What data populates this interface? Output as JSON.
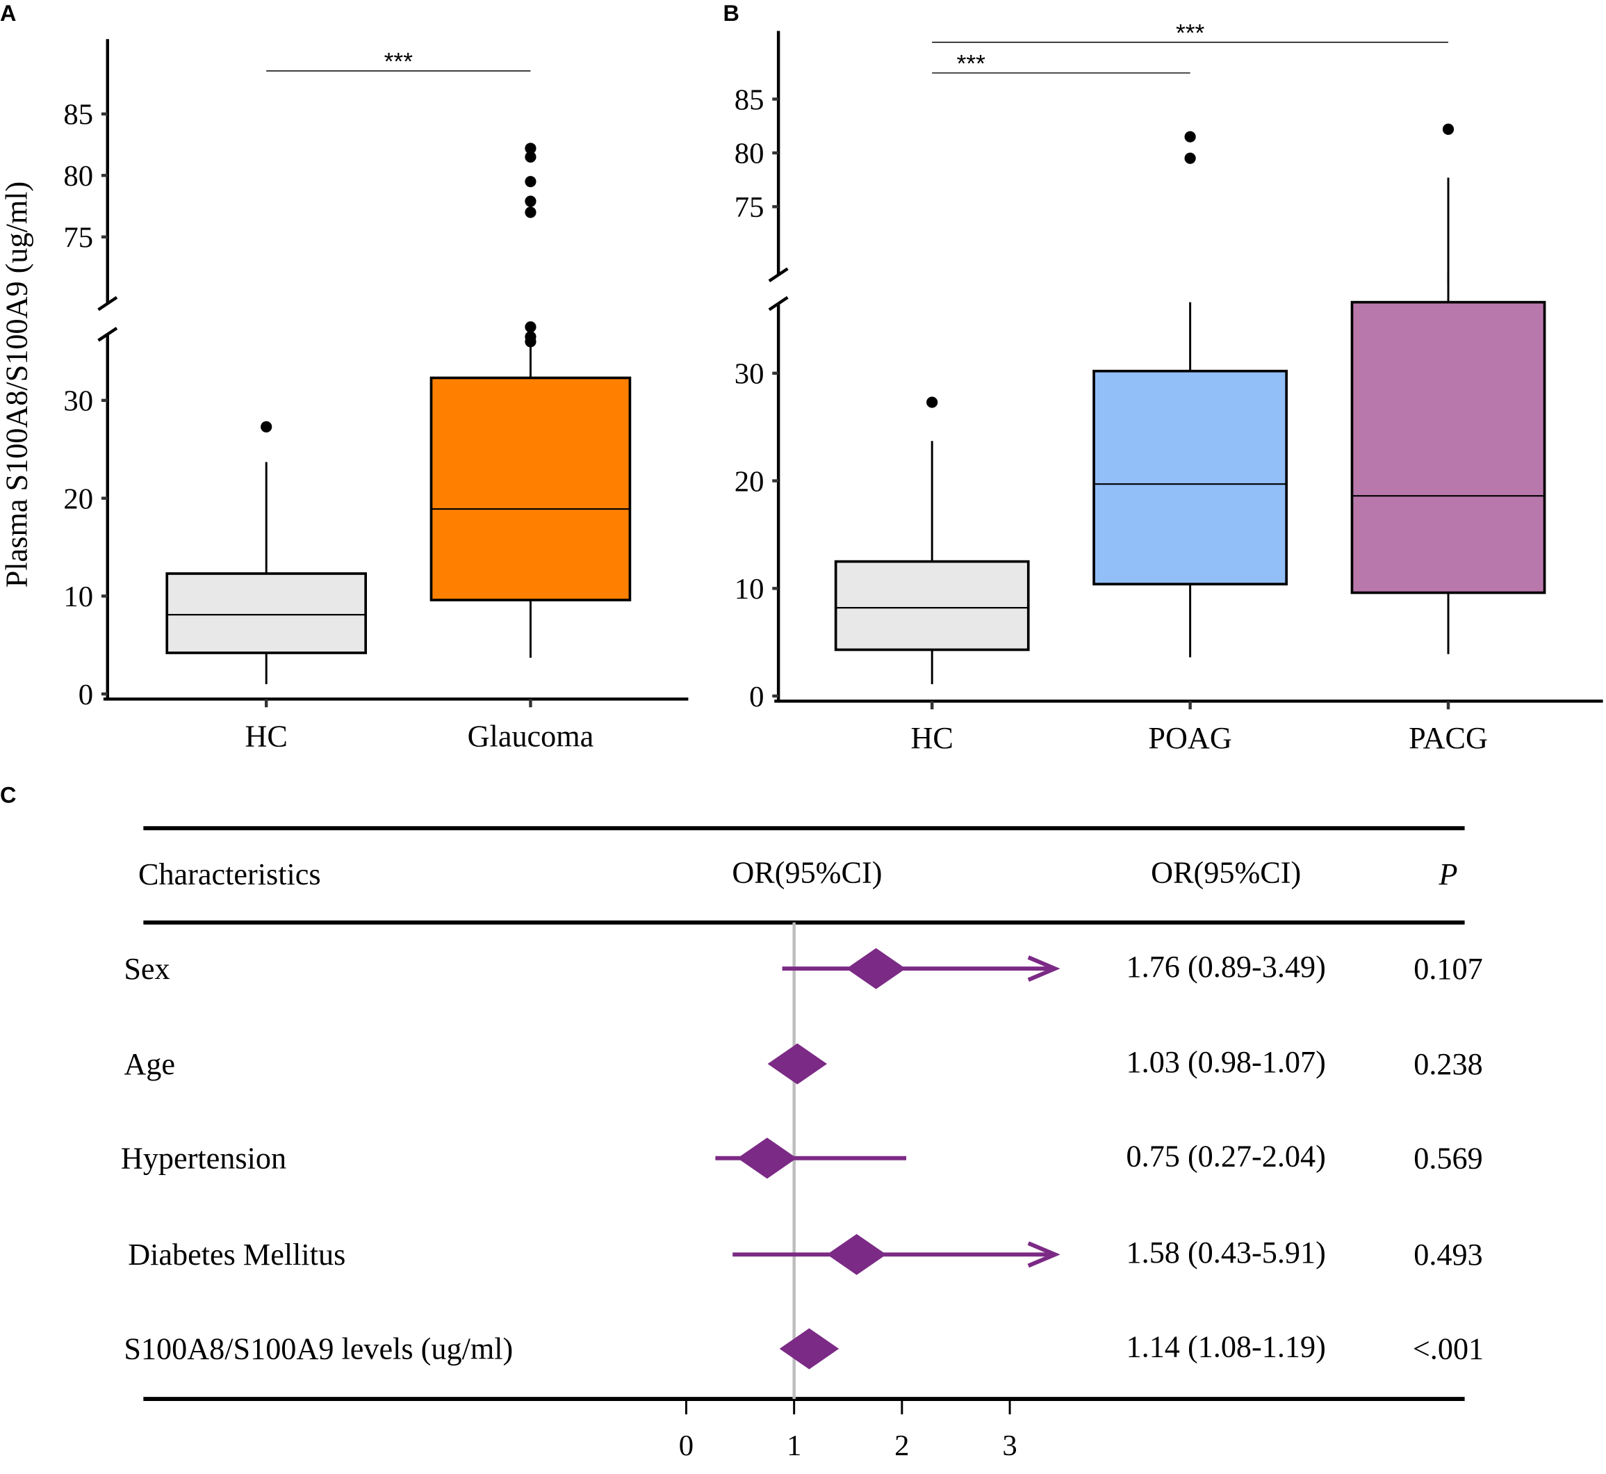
{
  "chart_data": [
    {
      "panel": "A",
      "type": "box",
      "ylabel": "Plasma S100A8/S100A9 (ug/ml)",
      "y_axis_break": true,
      "yticks_lower": [
        0,
        10,
        20,
        30
      ],
      "yticks_upper": [
        75,
        80,
        85
      ],
      "categories": [
        "HC",
        "Glaucoma"
      ],
      "colors": [
        "#e8e8e8",
        "#ff8000"
      ],
      "boxes": [
        {
          "name": "HC",
          "whisker_low": 1.0,
          "q1": 4.2,
          "median": 8.1,
          "q3": 12.3,
          "whisker_high": 23.7,
          "outliers": [
            27.3
          ]
        },
        {
          "name": "Glaucoma",
          "whisker_low": 3.7,
          "q1": 9.6,
          "median": 18.9,
          "q3": 32.3,
          "whisker_high": 35.5,
          "outliers": [
            36.0,
            36.5,
            37.5,
            77.0,
            77.9,
            79.5,
            81.5,
            82.2
          ]
        }
      ],
      "significance": [
        {
          "from": "HC",
          "to": "Glaucoma",
          "label": "***"
        }
      ]
    },
    {
      "panel": "B",
      "type": "box",
      "y_axis_break": true,
      "yticks_lower": [
        0,
        10,
        20,
        30
      ],
      "yticks_upper": [
        75,
        80,
        85
      ],
      "categories": [
        "HC",
        "POAG",
        "PACG"
      ],
      "colors": [
        "#e8e8e8",
        "#92bff8",
        "#b978ab"
      ],
      "boxes": [
        {
          "name": "HC",
          "whisker_low": 1.1,
          "q1": 4.3,
          "median": 8.2,
          "q3": 12.5,
          "whisker_high": 23.7,
          "outliers": [
            27.3
          ]
        },
        {
          "name": "POAG",
          "whisker_low": 3.6,
          "q1": 10.4,
          "median": 19.7,
          "q3": 30.2,
          "whisker_high": 36.6,
          "outliers": [
            79.5,
            81.5
          ]
        },
        {
          "name": "PACG",
          "whisker_low": 3.9,
          "q1": 9.6,
          "median": 18.6,
          "q3": 36.6,
          "whisker_high": 77.7,
          "outliers": [
            82.2
          ]
        }
      ],
      "significance": [
        {
          "from": "HC",
          "to": "POAG",
          "label": "***"
        },
        {
          "from": "HC",
          "to": "PACG",
          "label": "***"
        }
      ]
    },
    {
      "panel": "C",
      "type": "forest",
      "headers": {
        "characteristics": "Characteristics",
        "plot": "OR(95%CI)",
        "or": "OR(95%CI)",
        "p": "P"
      },
      "xticks": [
        0,
        1,
        2,
        3
      ],
      "reference_line": 1,
      "marker_color": "#7b2a85",
      "rows": [
        {
          "label": "Sex",
          "or": 1.76,
          "low": 0.89,
          "high": 3.49,
          "or_text": "1.76 (0.89-3.49)",
          "p": "0.107"
        },
        {
          "label": "Age",
          "or": 1.03,
          "low": 0.98,
          "high": 1.07,
          "or_text": "1.03 (0.98-1.07)",
          "p": "0.238"
        },
        {
          "label": "Hypertension",
          "or": 0.75,
          "low": 0.27,
          "high": 2.04,
          "or_text": "0.75 (0.27-2.04)",
          "p": "0.569"
        },
        {
          "label": "Diabetes Mellitus",
          "or": 1.58,
          "low": 0.43,
          "high": 5.91,
          "or_text": "1.58 (0.43-5.91)",
          "p": "0.493"
        },
        {
          "label": "S100A8/S100A9 levels (ug/ml)",
          "or": 1.14,
          "low": 1.08,
          "high": 1.19,
          "or_text": "1.14 (1.08-1.19)",
          "p": "<.001"
        }
      ]
    }
  ]
}
